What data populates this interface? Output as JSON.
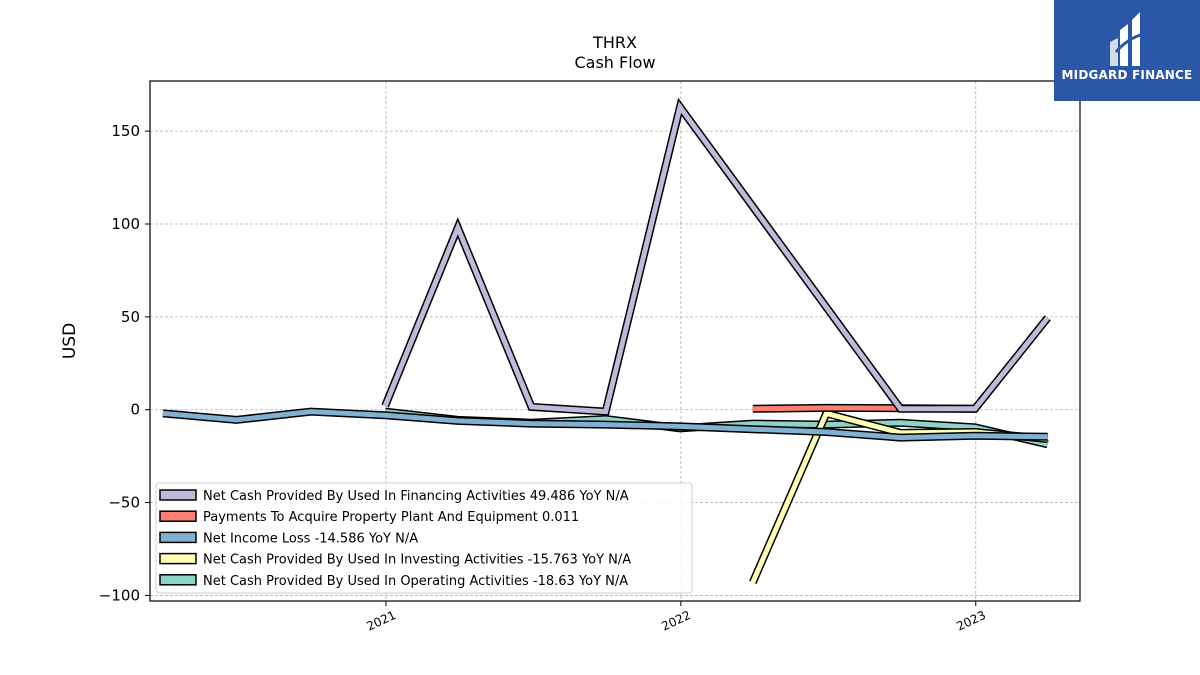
{
  "logo": {
    "text": "MIDGARD FINANCE",
    "background": "#2a57a8"
  },
  "chart_data": {
    "type": "line",
    "title": "THRX",
    "subtitle": "Cash Flow",
    "ylabel": "USD",
    "xlabel": "",
    "ylim": [
      -103,
      177
    ],
    "xlim": [
      "2020-03-15",
      "2023-05-10"
    ],
    "yticks": [
      -100,
      -50,
      0,
      50,
      100,
      150
    ],
    "ytick_labels": [
      "−100",
      "−50",
      "0",
      "50",
      "100",
      "150"
    ],
    "xticks": [
      "2021-01-01",
      "2022-01-01",
      "2023-01-01"
    ],
    "xtick_labels": [
      "2021",
      "2022",
      "2023"
    ],
    "grid": true,
    "legend_position": "lower-left",
    "series": [
      {
        "name": "Net Cash Provided By Used In Operating Activities  -18.63 YoY N/A",
        "color": "#8dd3c7",
        "x": [
          "2020-12-31",
          "2021-03-31",
          "2021-06-30",
          "2021-09-30",
          "2021-12-31",
          "2022-03-31",
          "2022-06-30",
          "2022-09-30",
          "2022-12-31",
          "2023-03-31"
        ],
        "y": [
          -1.0,
          -5.5,
          -7.0,
          -5.0,
          -10.0,
          -7.5,
          -8.0,
          -7.0,
          -9.5,
          -18.63
        ]
      },
      {
        "name": "Net Cash Provided By Used In Investing Activities  -15.763 YoY N/A",
        "color": "#ffffb3",
        "x": [
          "2022-03-31",
          "2022-06-30",
          "2022-09-30",
          "2022-12-31",
          "2023-03-31"
        ],
        "y": [
          -93.0,
          -2.0,
          -12.5,
          -12.0,
          -15.763
        ]
      },
      {
        "name": "Net Income Loss  -14.586 YoY N/A",
        "color": "#80b1d3",
        "x": [
          "2020-03-31",
          "2020-06-30",
          "2020-09-30",
          "2020-12-31",
          "2021-03-31",
          "2021-06-30",
          "2021-09-30",
          "2021-12-31",
          "2022-03-31",
          "2022-06-30",
          "2022-09-30",
          "2022-12-31",
          "2023-03-31"
        ],
        "y": [
          -2.0,
          -5.5,
          -1.0,
          -3.0,
          -6.0,
          -7.5,
          -8.0,
          -9.0,
          -10.5,
          -12.0,
          -15.0,
          -14.0,
          -14.586
        ]
      },
      {
        "name": "Payments To Acquire Property Plant And Equipment  0.011",
        "color": "#fb8072",
        "x": [
          "2022-03-31",
          "2022-06-30",
          "2022-09-30",
          "2022-12-31"
        ],
        "y": [
          0.5,
          1.0,
          0.8,
          0.5
        ]
      },
      {
        "name": "Net Cash Provided By Used In Financing Activities  49.486 YoY N/A",
        "color": "#bebada",
        "x": [
          "2020-12-31",
          "2021-03-31",
          "2021-06-30",
          "2021-09-30",
          "2021-12-31",
          "2022-09-30",
          "2022-12-31",
          "2023-03-31"
        ],
        "y": [
          2.0,
          98.0,
          1.5,
          -1.0,
          163.0,
          0.5,
          0.5,
          49.486
        ]
      }
    ],
    "legend_order": [
      4,
      3,
      2,
      1,
      0
    ]
  }
}
